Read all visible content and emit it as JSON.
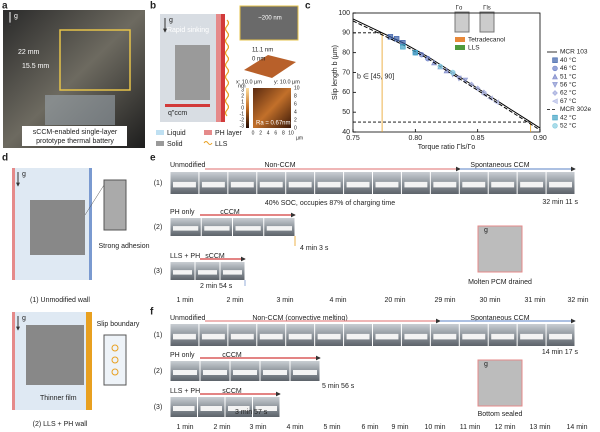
{
  "panel_a": {
    "label": "a",
    "g": "g",
    "dims": [
      "22 mm",
      "15.5 mm"
    ],
    "caption": [
      "sCCM-enabled single-layer",
      "prototype thermal battery"
    ]
  },
  "panel_b": {
    "label": "b",
    "g": "g",
    "sem_scale": "~200 nm",
    "rapid": "Rapid sinking",
    "q": "q\"ccm",
    "legend": [
      "Liquid",
      "PH layer",
      "Solid",
      "LLS"
    ],
    "afm": {
      "z_max": "11.1 nm",
      "z_min": "0 nm",
      "x_range": "x: 10.0 µm",
      "y_range": "y: 10.0 µm",
      "cbar_unit": "nm",
      "cbar_ticks": [
        "3",
        "2",
        "1",
        "0",
        "-1",
        "-2",
        "-3"
      ],
      "ra": "Ra = 0.67nm",
      "ticks": [
        "0",
        "2",
        "4",
        "6",
        "8",
        "10"
      ],
      "unit": "µm"
    }
  },
  "panel_c": {
    "label": "c",
    "type": "scatter",
    "x_label": "Torque ratio Γls/Γo",
    "y_label": "Slip length b (µm)",
    "annotation": "b ∈ [45, 90]",
    "ref_lines": [
      90,
      45
    ],
    "inset": {
      "torque_o": "Γo",
      "torque_ls": "Γls",
      "legend": [
        {
          "name": "Tetradecanol",
          "color": "#e8893a"
        },
        {
          "name": "LLS",
          "color": "#4e9a3c"
        }
      ]
    },
    "xlim": [
      0.75,
      0.9
    ],
    "xticks": [
      {
        "value": 0.75,
        "label": "0.75"
      },
      {
        "value": 0.8,
        "label": "0.80"
      },
      {
        "value": 0.85,
        "label": "0.85"
      },
      {
        "value": 0.9,
        "label": "0.90"
      }
    ],
    "ylim": [
      40,
      100
    ],
    "yticks": [
      40,
      50,
      60,
      70,
      80,
      90,
      100
    ],
    "series": [
      {
        "name": "MCR 103",
        "color": "#000000",
        "style": "solid",
        "x": [
          0.75,
          0.77,
          0.79,
          0.81,
          0.83,
          0.85,
          0.87,
          0.89,
          0.9
        ],
        "values": [
          97,
          91,
          85,
          78,
          70,
          62,
          54,
          46,
          42
        ]
      },
      {
        "name": "40 °C",
        "color": "#3a5fa8",
        "marker": "square",
        "x": [
          0.78,
          0.785,
          0.79
        ],
        "values": [
          88,
          87,
          85
        ]
      },
      {
        "name": "46 °C",
        "color": "#6b7fc7",
        "marker": "circle",
        "x": [
          0.8,
          0.805,
          0.81
        ],
        "values": [
          80,
          79,
          77
        ]
      },
      {
        "name": "51 °C",
        "color": "#7a86c9",
        "marker": "triangle-up",
        "x": [
          0.815,
          0.82,
          0.825
        ],
        "values": [
          75,
          73,
          71
        ]
      },
      {
        "name": "56 °C",
        "color": "#8a95d0",
        "marker": "triangle-down",
        "x": [
          0.83,
          0.835,
          0.84
        ],
        "values": [
          69,
          67,
          66
        ]
      },
      {
        "name": "62 °C",
        "color": "#a0a9dc",
        "marker": "diamond",
        "x": [
          0.845,
          0.85,
          0.855
        ],
        "values": [
          64,
          62,
          60
        ]
      },
      {
        "name": "67 °C",
        "color": "#b6bde6",
        "marker": "triangle-left",
        "x": [
          0.855,
          0.86,
          0.865
        ],
        "values": [
          59,
          57,
          55
        ]
      },
      {
        "name": "MCR 302e",
        "color": "#000000",
        "style": "dashed",
        "x": [
          0.75,
          0.77,
          0.79,
          0.81,
          0.83,
          0.85,
          0.87,
          0.89,
          0.9
        ],
        "values": [
          96,
          90,
          84,
          77,
          69,
          61,
          53,
          45,
          41
        ]
      },
      {
        "name": "42 °C",
        "color": "#3fa2c4",
        "marker": "square",
        "x": [
          0.79,
          0.8
        ],
        "values": [
          83,
          80
        ]
      },
      {
        "name": "52 °C",
        "color": "#86cde0",
        "marker": "circle",
        "x": [
          0.82,
          0.83
        ],
        "values": [
          73,
          70
        ]
      }
    ]
  },
  "panel_d": {
    "label": "d",
    "g": [
      "g",
      "g"
    ],
    "strong": "Strong adhesion",
    "wall1": "(1) Unmodified wall",
    "slip": "Slip boundary",
    "thin": "Thinner film",
    "wall2": "(2) LLS + PH wall"
  },
  "panel_e": {
    "label": "e",
    "rows": [
      "(1)",
      "(2)",
      "(3)"
    ],
    "unmod": "Unmodified",
    "non": "Non-CCM",
    "spont": "Spontaneous CCM",
    "soc": "40% SOC, occupies 87% of charging time",
    "t1": "32 min 11 s",
    "ph": "PH only",
    "cccm": "cCCM",
    "t2": "4 min 3 s",
    "llsph": "LLS + PH",
    "sccm": "sCCM",
    "t3": "2 min 54 s",
    "g": "g",
    "drained": "Molten PCM drained",
    "times": [
      "1 min",
      "2 min",
      "3 min",
      "4 min",
      "20 min",
      "29 min",
      "30 min",
      "31 min",
      "32 min"
    ]
  },
  "panel_f": {
    "label": "f",
    "rows": [
      "(1)",
      "(2)",
      "(3)"
    ],
    "unmod": "Unmodified",
    "non": "Non-CCM (convective melting)",
    "spont": "Spontaneous CCM",
    "t1": "14 min 17 s",
    "ph": "PH only",
    "cccm": "cCCM",
    "t2": "5 min 56 s",
    "llsph": "LLS + PH",
    "sccm": "sCCM",
    "t3": "3 min 57 s",
    "g": "g",
    "sealed": "Bottom sealed",
    "times": [
      "1 min",
      "2 min",
      "3 min",
      "4 min",
      "5 min",
      "6 min",
      "9 min",
      "10 min",
      "11 min",
      "12 min",
      "13 min",
      "14 min"
    ]
  }
}
